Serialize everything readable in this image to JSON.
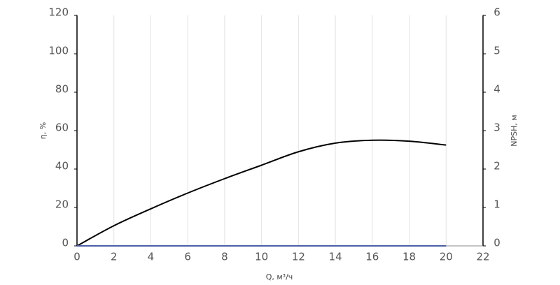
{
  "chart_data": {
    "type": "line",
    "x_label": "Q, м³/ч",
    "y_label": "η, %",
    "y2_label": "NPSH, м",
    "x": [
      0,
      2,
      4,
      6,
      8,
      10,
      12,
      14,
      16,
      18,
      20
    ],
    "series": [
      {
        "color": "#000000",
        "values": [
          0,
          10.5,
          19.3,
          27.5,
          35,
          42,
          49,
          53.5,
          55,
          54.5,
          52.5
        ]
      },
      {
        "color": "#4a5fa8",
        "axis": "y2",
        "values": [
          0,
          0,
          0,
          0,
          0,
          0,
          0,
          0,
          0,
          0,
          0
        ]
      }
    ],
    "xlim": [
      0,
      22
    ],
    "xticks": [
      0,
      2,
      4,
      6,
      8,
      10,
      12,
      14,
      16,
      18,
      20,
      22
    ],
    "ylim": [
      0,
      120
    ],
    "yticks": [
      0,
      20,
      40,
      60,
      80,
      100,
      120
    ],
    "y2lim": [
      0,
      6
    ],
    "y2ticks": [
      0,
      1,
      2,
      3,
      4,
      5,
      6
    ],
    "grid": true
  }
}
